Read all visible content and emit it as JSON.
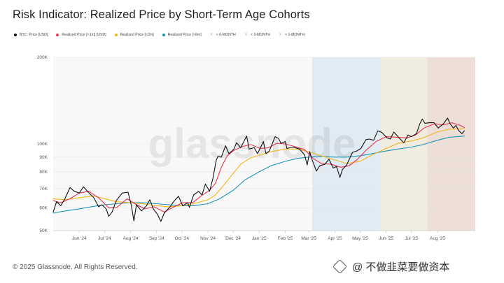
{
  "title": "Risk Indicator: Realized Price by Short-Term Age Cohorts",
  "footer": "© 2025 Glassnode. All Rights Reserved.",
  "watermark": "glassnode",
  "source_mark": {
    "icon": "diamond-logo-icon",
    "text": "@ 不做韭菜要做资本"
  },
  "legend": [
    {
      "label": "BTC: Price [USD]",
      "color": "#111111",
      "kind": "dot"
    },
    {
      "label": "Realized Price [<1m] [USD]",
      "color": "#e8344e",
      "kind": "dot"
    },
    {
      "label": "Realized Price [<3m]",
      "color": "#f2b51c",
      "kind": "dot"
    },
    {
      "label": "Realized Price [<6m]",
      "color": "#1f93b8",
      "kind": "dot"
    },
    {
      "label": "< 6-MONTH",
      "color": "#cccccc",
      "kind": "cross"
    },
    {
      "label": "< 3-MONTH",
      "color": "#cccccc",
      "kind": "cross"
    },
    {
      "label": "< 1-MONTH",
      "color": "#cccccc",
      "kind": "cross"
    }
  ],
  "chart_data": {
    "type": "line",
    "y_scale": "log",
    "ylim": [
      50000,
      200000
    ],
    "y_ticks": [
      {
        "value": 200000,
        "label": "200K"
      },
      {
        "value": 100000,
        "label": "100K"
      },
      {
        "value": 90000,
        "label": "90K"
      },
      {
        "value": 80000,
        "label": "80K"
      },
      {
        "value": 70000,
        "label": "70K"
      },
      {
        "value": 60000,
        "label": "60K"
      },
      {
        "value": 50000,
        "label": "50K"
      }
    ],
    "xlim": [
      "2024-05-01",
      "2025-09-15"
    ],
    "x_ticks": [
      {
        "value": "2024-06-01",
        "label": "Jun '24"
      },
      {
        "value": "2024-07-01",
        "label": "Jul '24"
      },
      {
        "value": "2024-08-01",
        "label": "Aug '24"
      },
      {
        "value": "2024-09-01",
        "label": "Sep '24"
      },
      {
        "value": "2024-10-01",
        "label": "Oct '24"
      },
      {
        "value": "2024-11-01",
        "label": "Nov '24"
      },
      {
        "value": "2024-12-01",
        "label": "Dec '24"
      },
      {
        "value": "2025-01-01",
        "label": "Jan '25"
      },
      {
        "value": "2025-02-01",
        "label": "Feb '25"
      },
      {
        "value": "2025-03-01",
        "label": "Mar '25"
      },
      {
        "value": "2025-04-01",
        "label": "Apr '25"
      },
      {
        "value": "2025-05-01",
        "label": "May '25"
      },
      {
        "value": "2025-06-01",
        "label": "Jun '25"
      },
      {
        "value": "2025-07-01",
        "label": "Jul '25"
      },
      {
        "value": "2025-08-01",
        "label": "Aug '25"
      }
    ],
    "shaded_regions": [
      {
        "label": "< 6-MONTH",
        "start": "2025-03-05",
        "end": "2025-05-25",
        "color": "#dde9f2"
      },
      {
        "label": "< 3-MONTH",
        "start": "2025-05-25",
        "end": "2025-07-20",
        "color": "#eeeadb"
      },
      {
        "label": "< 1-MONTH",
        "start": "2025-07-20",
        "end": "2025-09-15",
        "color": "#ecd9d2"
      }
    ],
    "series": [
      {
        "name": "BTC: Price [USD]",
        "color": "#111111",
        "width": 1.1,
        "points": [
          [
            "2024-05-01",
            58000
          ],
          [
            "2024-05-05",
            63000
          ],
          [
            "2024-05-10",
            61000
          ],
          [
            "2024-05-15",
            64500
          ],
          [
            "2024-05-21",
            70500
          ],
          [
            "2024-05-26",
            68500
          ],
          [
            "2024-06-01",
            67500
          ],
          [
            "2024-06-06",
            71000
          ],
          [
            "2024-06-12",
            67800
          ],
          [
            "2024-06-18",
            65200
          ],
          [
            "2024-06-24",
            60500
          ],
          [
            "2024-06-28",
            61500
          ],
          [
            "2024-07-03",
            59500
          ],
          [
            "2024-07-06",
            56000
          ],
          [
            "2024-07-10",
            58000
          ],
          [
            "2024-07-15",
            63500
          ],
          [
            "2024-07-22",
            67500
          ],
          [
            "2024-07-29",
            68000
          ],
          [
            "2024-08-02",
            61000
          ],
          [
            "2024-08-05",
            54000
          ],
          [
            "2024-08-08",
            61500
          ],
          [
            "2024-08-14",
            58500
          ],
          [
            "2024-08-20",
            61000
          ],
          [
            "2024-08-24",
            64000
          ],
          [
            "2024-08-28",
            59500
          ],
          [
            "2024-09-02",
            57000
          ],
          [
            "2024-09-06",
            53800
          ],
          [
            "2024-09-10",
            57500
          ],
          [
            "2024-09-17",
            60500
          ],
          [
            "2024-09-22",
            63500
          ],
          [
            "2024-09-27",
            65800
          ],
          [
            "2024-10-02",
            61000
          ],
          [
            "2024-10-08",
            62500
          ],
          [
            "2024-10-10",
            60200
          ],
          [
            "2024-10-15",
            66500
          ],
          [
            "2024-10-21",
            68500
          ],
          [
            "2024-10-25",
            66500
          ],
          [
            "2024-10-29",
            72500
          ],
          [
            "2024-11-03",
            68500
          ],
          [
            "2024-11-07",
            76000
          ],
          [
            "2024-11-11",
            88000
          ],
          [
            "2024-11-13",
            90500
          ],
          [
            "2024-11-17",
            90000
          ],
          [
            "2024-11-22",
            98500
          ],
          [
            "2024-11-26",
            92500
          ],
          [
            "2024-12-02",
            96000
          ],
          [
            "2024-12-05",
            101000
          ],
          [
            "2024-12-10",
            97000
          ],
          [
            "2024-12-17",
            106500
          ],
          [
            "2024-12-20",
            96000
          ],
          [
            "2024-12-26",
            97000
          ],
          [
            "2024-12-30",
            92500
          ],
          [
            "2025-01-06",
            102000
          ],
          [
            "2025-01-09",
            92500
          ],
          [
            "2025-01-13",
            94500
          ],
          [
            "2025-01-20",
            106000
          ],
          [
            "2025-01-24",
            104500
          ],
          [
            "2025-01-27",
            100500
          ],
          [
            "2025-02-01",
            102000
          ],
          [
            "2025-02-03",
            96500
          ],
          [
            "2025-02-10",
            97500
          ],
          [
            "2025-02-18",
            96000
          ],
          [
            "2025-02-24",
            91500
          ],
          [
            "2025-02-27",
            84500
          ],
          [
            "2025-03-02",
            94000
          ],
          [
            "2025-03-05",
            88000
          ],
          [
            "2025-03-10",
            80500
          ],
          [
            "2025-03-14",
            84000
          ],
          [
            "2025-03-20",
            85000
          ],
          [
            "2025-03-25",
            88500
          ],
          [
            "2025-03-30",
            82500
          ],
          [
            "2025-04-03",
            83500
          ],
          [
            "2025-04-07",
            76500
          ],
          [
            "2025-04-10",
            81500
          ],
          [
            "2025-04-15",
            84500
          ],
          [
            "2025-04-22",
            93500
          ],
          [
            "2025-04-27",
            94500
          ],
          [
            "2025-05-02",
            96500
          ],
          [
            "2025-05-08",
            103500
          ],
          [
            "2025-05-12",
            104000
          ],
          [
            "2025-05-17",
            103000
          ],
          [
            "2025-05-22",
            111000
          ],
          [
            "2025-05-27",
            109500
          ],
          [
            "2025-06-02",
            105000
          ],
          [
            "2025-06-06",
            104000
          ],
          [
            "2025-06-10",
            110000
          ],
          [
            "2025-06-17",
            104500
          ],
          [
            "2025-06-22",
            101000
          ],
          [
            "2025-06-27",
            107500
          ],
          [
            "2025-07-01",
            106000
          ],
          [
            "2025-07-07",
            108500
          ],
          [
            "2025-07-11",
            117500
          ],
          [
            "2025-07-14",
            122000
          ],
          [
            "2025-07-17",
            118000
          ],
          [
            "2025-07-23",
            118500
          ],
          [
            "2025-07-28",
            118500
          ],
          [
            "2025-08-02",
            113500
          ],
          [
            "2025-08-08",
            117500
          ],
          [
            "2025-08-13",
            123000
          ],
          [
            "2025-08-16",
            117500
          ],
          [
            "2025-08-20",
            113500
          ],
          [
            "2025-08-23",
            116000
          ],
          [
            "2025-08-26",
            111500
          ],
          [
            "2025-08-30",
            108500
          ],
          [
            "2025-09-02",
            111000
          ]
        ]
      },
      {
        "name": "Realized Price [<1m] [USD]",
        "color": "#e8344e",
        "width": 1.1,
        "points": [
          [
            "2024-05-01",
            63500
          ],
          [
            "2024-05-10",
            62500
          ],
          [
            "2024-05-21",
            64500
          ],
          [
            "2024-06-01",
            67500
          ],
          [
            "2024-06-12",
            68500
          ],
          [
            "2024-06-24",
            65000
          ],
          [
            "2024-07-06",
            60000
          ],
          [
            "2024-07-15",
            60000
          ],
          [
            "2024-07-28",
            64500
          ],
          [
            "2024-08-06",
            62000
          ],
          [
            "2024-08-18",
            59500
          ],
          [
            "2024-08-29",
            60500
          ],
          [
            "2024-09-10",
            58000
          ],
          [
            "2024-09-22",
            60500
          ],
          [
            "2024-10-02",
            62500
          ],
          [
            "2024-10-14",
            62500
          ],
          [
            "2024-10-24",
            66000
          ],
          [
            "2024-11-03",
            69000
          ],
          [
            "2024-11-10",
            73000
          ],
          [
            "2024-11-17",
            83000
          ],
          [
            "2024-11-24",
            91000
          ],
          [
            "2024-12-02",
            95000
          ],
          [
            "2024-12-12",
            98000
          ],
          [
            "2024-12-22",
            99500
          ],
          [
            "2025-01-02",
            96500
          ],
          [
            "2025-01-12",
            97000
          ],
          [
            "2025-01-22",
            100500
          ],
          [
            "2025-02-01",
            100000
          ],
          [
            "2025-02-12",
            98000
          ],
          [
            "2025-02-24",
            95500
          ],
          [
            "2025-03-06",
            89000
          ],
          [
            "2025-03-16",
            85500
          ],
          [
            "2025-03-28",
            85000
          ],
          [
            "2025-04-08",
            83000
          ],
          [
            "2025-04-18",
            84000
          ],
          [
            "2025-04-28",
            88500
          ],
          [
            "2025-05-08",
            95000
          ],
          [
            "2025-05-20",
            102000
          ],
          [
            "2025-06-01",
            106000
          ],
          [
            "2025-06-14",
            105500
          ],
          [
            "2025-06-26",
            105000
          ],
          [
            "2025-07-06",
            107500
          ],
          [
            "2025-07-16",
            113500
          ],
          [
            "2025-07-28",
            117500
          ],
          [
            "2025-08-08",
            116500
          ],
          [
            "2025-08-18",
            118500
          ],
          [
            "2025-08-28",
            116000
          ],
          [
            "2025-09-02",
            114000
          ]
        ]
      },
      {
        "name": "Realized Price [<3m]",
        "color": "#f2b51c",
        "width": 1.1,
        "points": [
          [
            "2024-05-01",
            64500
          ],
          [
            "2024-05-15",
            64000
          ],
          [
            "2024-06-01",
            65000
          ],
          [
            "2024-06-18",
            66000
          ],
          [
            "2024-07-01",
            64500
          ],
          [
            "2024-07-15",
            63000
          ],
          [
            "2024-08-01",
            62500
          ],
          [
            "2024-08-15",
            62000
          ],
          [
            "2024-09-01",
            61000
          ],
          [
            "2024-09-15",
            60500
          ],
          [
            "2024-10-01",
            61000
          ],
          [
            "2024-10-15",
            62000
          ],
          [
            "2024-11-01",
            64000
          ],
          [
            "2024-11-10",
            66500
          ],
          [
            "2024-11-20",
            72000
          ],
          [
            "2024-12-01",
            79000
          ],
          [
            "2024-12-10",
            85000
          ],
          [
            "2024-12-22",
            89500
          ],
          [
            "2025-01-02",
            91500
          ],
          [
            "2025-01-15",
            94000
          ],
          [
            "2025-02-01",
            96000
          ],
          [
            "2025-02-15",
            96000
          ],
          [
            "2025-03-01",
            94000
          ],
          [
            "2025-03-15",
            91000
          ],
          [
            "2025-04-01",
            88000
          ],
          [
            "2025-04-15",
            85500
          ],
          [
            "2025-05-01",
            87000
          ],
          [
            "2025-05-15",
            91500
          ],
          [
            "2025-06-01",
            96500
          ],
          [
            "2025-06-15",
            100500
          ],
          [
            "2025-07-01",
            102500
          ],
          [
            "2025-07-15",
            105000
          ],
          [
            "2025-08-01",
            110000
          ],
          [
            "2025-08-15",
            112500
          ],
          [
            "2025-09-02",
            113000
          ]
        ]
      },
      {
        "name": "Realized Price [<6m]",
        "color": "#1f93b8",
        "width": 1.1,
        "points": [
          [
            "2024-05-01",
            57500
          ],
          [
            "2024-05-15",
            58500
          ],
          [
            "2024-06-01",
            59500
          ],
          [
            "2024-06-15",
            60500
          ],
          [
            "2024-07-01",
            61500
          ],
          [
            "2024-07-15",
            62000
          ],
          [
            "2024-08-01",
            62500
          ],
          [
            "2024-08-15",
            62500
          ],
          [
            "2024-09-01",
            62000
          ],
          [
            "2024-09-15",
            61500
          ],
          [
            "2024-10-01",
            61000
          ],
          [
            "2024-10-15",
            61000
          ],
          [
            "2024-11-01",
            62000
          ],
          [
            "2024-11-15",
            64500
          ],
          [
            "2024-12-01",
            69000
          ],
          [
            "2024-12-15",
            75000
          ],
          [
            "2025-01-01",
            80000
          ],
          [
            "2025-01-15",
            84000
          ],
          [
            "2025-02-01",
            87000
          ],
          [
            "2025-02-15",
            89000
          ],
          [
            "2025-03-01",
            90000
          ],
          [
            "2025-03-15",
            90500
          ],
          [
            "2025-04-01",
            90000
          ],
          [
            "2025-04-15",
            90000
          ],
          [
            "2025-05-01",
            91000
          ],
          [
            "2025-05-15",
            92500
          ],
          [
            "2025-06-01",
            94500
          ],
          [
            "2025-06-15",
            96000
          ],
          [
            "2025-07-01",
            97500
          ],
          [
            "2025-07-15",
            99500
          ],
          [
            "2025-08-01",
            103000
          ],
          [
            "2025-08-15",
            105500
          ],
          [
            "2025-09-02",
            106500
          ]
        ]
      }
    ]
  }
}
